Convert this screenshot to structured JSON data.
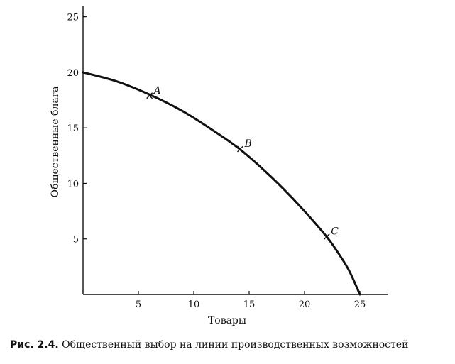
{
  "chart_data": {
    "type": "line",
    "xlabel": "Товары",
    "ylabel": "Общественные блага",
    "xlim": [
      0,
      27.5
    ],
    "ylim": [
      0,
      26
    ],
    "x_ticks": [
      5,
      10,
      15,
      20,
      25
    ],
    "y_ticks": [
      5,
      10,
      15,
      20,
      25
    ],
    "x_tick_labels": [
      "5",
      "10",
      "15",
      "20",
      "25"
    ],
    "y_tick_labels": [
      "5",
      "10",
      "15",
      "20",
      "25"
    ],
    "curve": {
      "x": [
        0,
        3,
        6,
        9,
        12,
        14,
        16,
        18,
        20,
        22,
        23,
        24,
        25
      ],
      "y": [
        20,
        19.2,
        18,
        16.5,
        14.6,
        13.2,
        11.5,
        9.6,
        7.5,
        5.2,
        3.8,
        2.2,
        0
      ]
    },
    "points": [
      {
        "label": "A",
        "x": 6,
        "y": 17.9
      },
      {
        "label": "B",
        "x": 14.2,
        "y": 13.1
      },
      {
        "label": "C",
        "x": 22,
        "y": 5.2
      }
    ]
  },
  "caption": {
    "prefix": "Рис. 2.4.",
    "text": "Общественный выбор на линии производственных возможностей"
  }
}
